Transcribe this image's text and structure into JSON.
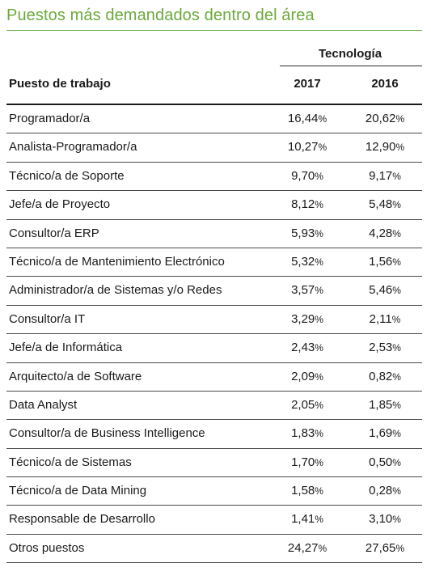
{
  "title": "Puestos más demandados dentro del área",
  "group_header": "Tecnología",
  "columns": {
    "job": "Puesto de trabajo",
    "year1": "2017",
    "year2": "2016"
  },
  "percent_sign": "%",
  "rows": [
    {
      "job": "Programador/a",
      "v2017": "16,44",
      "v2016": "20,62"
    },
    {
      "job": "Analista-Programador/a",
      "v2017": "10,27",
      "v2016": "12,90"
    },
    {
      "job": "Técnico/a de Soporte",
      "v2017": "9,70",
      "v2016": "9,17"
    },
    {
      "job": "Jefe/a de Proyecto",
      "v2017": "8,12",
      "v2016": "5,48"
    },
    {
      "job": "Consultor/a ERP",
      "v2017": "5,93",
      "v2016": "4,28"
    },
    {
      "job": "Técnico/a de Mantenimiento Electrónico",
      "v2017": "5,32",
      "v2016": "1,56"
    },
    {
      "job": "Administrador/a de Sistemas y/o Redes",
      "v2017": "3,57",
      "v2016": "5,46"
    },
    {
      "job": "Consultor/a IT",
      "v2017": "3,29",
      "v2016": "2,11"
    },
    {
      "job": "Jefe/a de Informática",
      "v2017": "2,43",
      "v2016": "2,53"
    },
    {
      "job": "Arquitecto/a de Software",
      "v2017": "2,09",
      "v2016": "0,82"
    },
    {
      "job": "Data Analyst",
      "v2017": "2,05",
      "v2016": "1,85"
    },
    {
      "job": "Consultor/a de Business Intelligence",
      "v2017": "1,83",
      "v2016": "1,69"
    },
    {
      "job": "Técnico/a de Sistemas",
      "v2017": "1,70",
      "v2016": "0,50"
    },
    {
      "job": "Técnico/a de Data Mining",
      "v2017": "1,58",
      "v2016": "0,28"
    },
    {
      "job": "Responsable de Desarrollo",
      "v2017": "1,41",
      "v2016": "3,10"
    },
    {
      "job": "Otros puestos",
      "v2017": "24,27",
      "v2016": "27,65"
    }
  ],
  "colors": {
    "accent": "#6aaa3a",
    "text": "#1a1a1a",
    "rule": "#4a4a4a"
  }
}
